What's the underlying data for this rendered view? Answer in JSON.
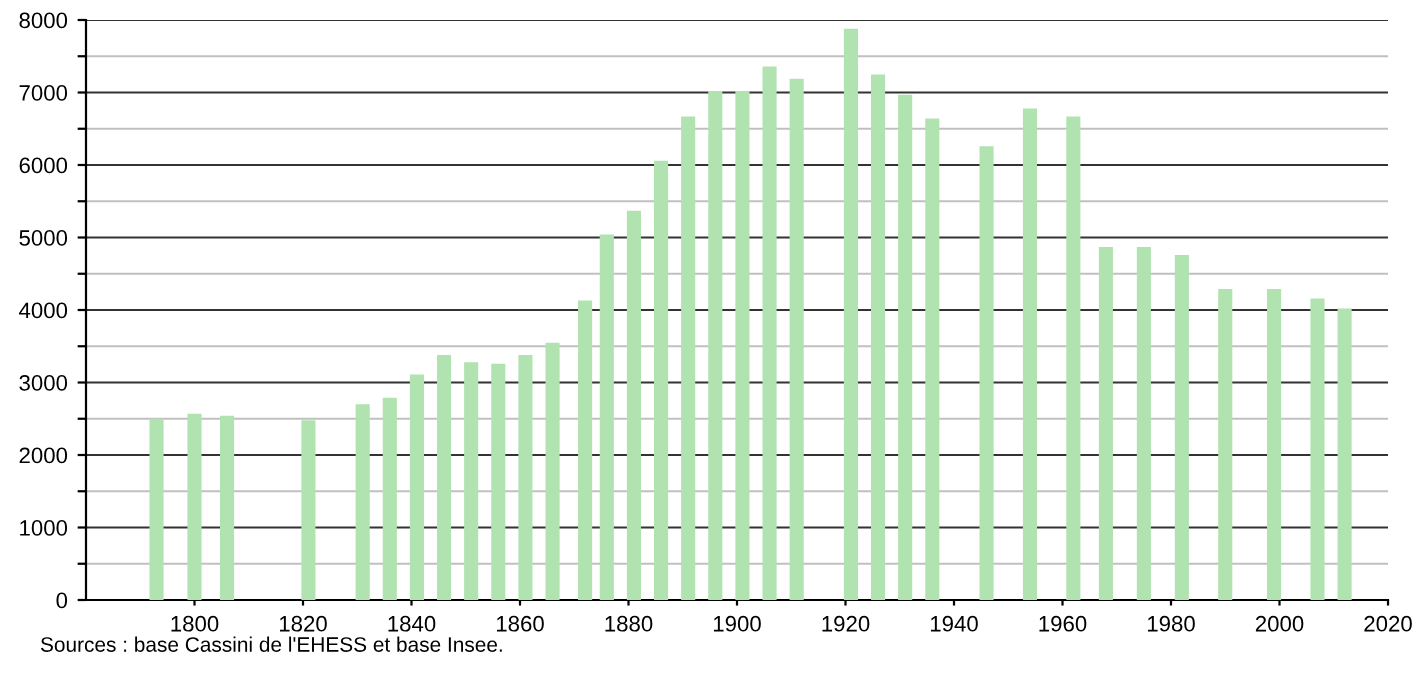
{
  "chart_data": {
    "type": "bar",
    "color": "#b0e3b0",
    "x": [
      1793,
      1800,
      1806,
      1821,
      1831,
      1836,
      1841,
      1846,
      1851,
      1856,
      1861,
      1866,
      1872,
      1876,
      1881,
      1886,
      1891,
      1896,
      1901,
      1906,
      1911,
      1921,
      1926,
      1931,
      1936,
      1946,
      1954,
      1962,
      1968,
      1975,
      1982,
      1990,
      1999,
      2007,
      2012
    ],
    "values": [
      2500,
      2570,
      2540,
      2480,
      2700,
      2790,
      3110,
      3380,
      3280,
      3260,
      3380,
      3550,
      4130,
      5040,
      5370,
      6060,
      6670,
      7020,
      7020,
      7360,
      7190,
      7880,
      7250,
      6970,
      6640,
      6260,
      6780,
      6670,
      4870,
      4870,
      4760,
      4290,
      4290,
      4160,
      4020
    ],
    "xlim": [
      1780,
      2020
    ],
    "xticks": [
      1800,
      1820,
      1840,
      1860,
      1880,
      1900,
      1920,
      1940,
      1960,
      1980,
      2000,
      2020
    ],
    "ylim": [
      0,
      8000
    ],
    "yticks": [
      0,
      {
        "value": 500,
        "label": null
      },
      1000,
      {
        "value": 1500,
        "label": null
      },
      2000,
      {
        "value": 2500,
        "label": null
      },
      3000,
      {
        "value": 3500,
        "label": null
      },
      4000,
      {
        "value": 4500,
        "label": null
      },
      5000,
      {
        "value": 5500,
        "label": null
      },
      6000,
      {
        "value": 6500,
        "label": null
      },
      7000,
      {
        "value": 7500,
        "label": null
      },
      8000
    ],
    "grid": "y",
    "annotations": [
      "Sources : base Cassini de l'EHESS et base Insee."
    ]
  }
}
